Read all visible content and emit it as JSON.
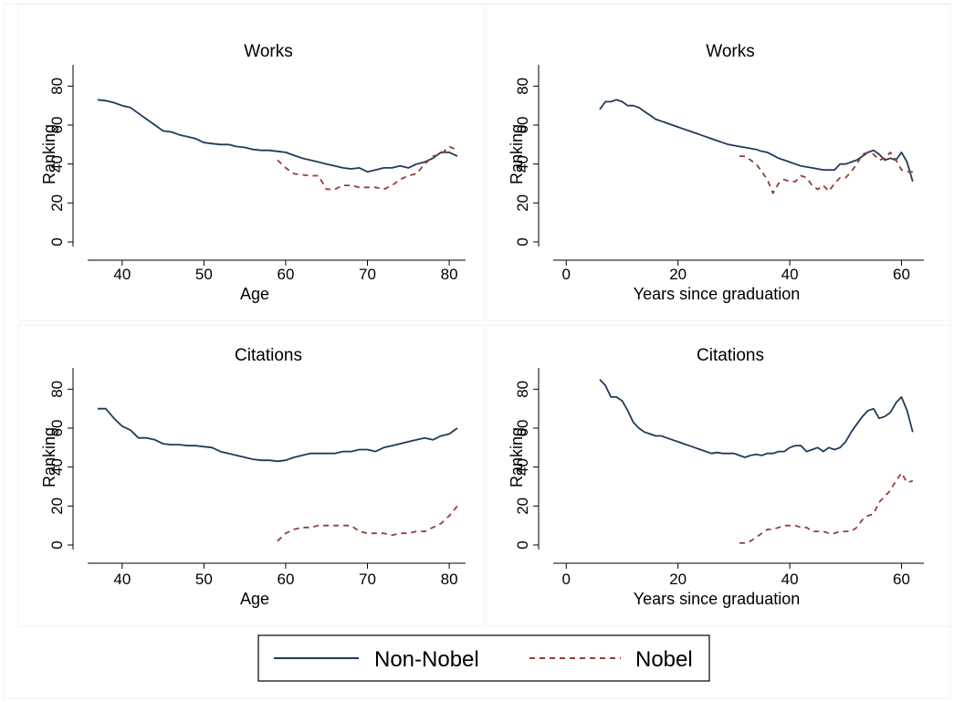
{
  "legend": {
    "entries": [
      {
        "label": "Non-Nobel",
        "color": "#1f3b5c",
        "style": "solid"
      },
      {
        "label": "Nobel",
        "color": "#9b3a3a",
        "style": "dashed"
      }
    ]
  },
  "chart_data": [
    {
      "type": "line",
      "title": "Works",
      "xlabel": "Age",
      "ylabel": "Ranking",
      "xlim": [
        36,
        82
      ],
      "ylim": [
        0,
        90
      ],
      "xticks": [
        40,
        50,
        60,
        70,
        80
      ],
      "yticks": [
        0,
        20,
        40,
        60,
        80
      ],
      "series": [
        {
          "name": "Non-Nobel",
          "x": [
            37,
            38,
            39,
            40,
            41,
            42,
            43,
            44,
            45,
            46,
            47,
            48,
            49,
            50,
            51,
            52,
            53,
            54,
            55,
            56,
            57,
            58,
            59,
            60,
            61,
            62,
            63,
            64,
            65,
            66,
            67,
            68,
            69,
            70,
            71,
            72,
            73,
            74,
            75,
            76,
            77,
            78,
            79,
            80,
            81
          ],
          "y": [
            73,
            72.5,
            71.5,
            70,
            69,
            66,
            63,
            60,
            57,
            56.5,
            55,
            54,
            53,
            51,
            50.5,
            50,
            50,
            49,
            48.5,
            47.5,
            47,
            47,
            46.5,
            46,
            44.5,
            43,
            42,
            41,
            40,
            39,
            38,
            37.5,
            38,
            36,
            37,
            38,
            38,
            39,
            38,
            40,
            41,
            43,
            46,
            46,
            44
          ]
        },
        {
          "name": "Nobel",
          "x": [
            59,
            60,
            61,
            62,
            63,
            64,
            65,
            66,
            67,
            68,
            69,
            70,
            71,
            72,
            73,
            74,
            75,
            76,
            77,
            78,
            79,
            80,
            81
          ],
          "y": [
            42,
            38,
            35,
            34.5,
            34,
            34,
            27,
            27,
            29,
            29,
            28,
            28,
            28,
            27,
            29,
            32,
            34,
            35,
            40,
            44,
            45,
            49,
            47
          ]
        }
      ]
    },
    {
      "type": "line",
      "title": "Works",
      "xlabel": "Years since graduation",
      "ylabel": "Ranking",
      "xlim": [
        -2,
        64
      ],
      "ylim": [
        0,
        90
      ],
      "xticks": [
        0,
        20,
        40,
        60
      ],
      "yticks": [
        0,
        20,
        40,
        60,
        80
      ],
      "series": [
        {
          "name": "Non-Nobel",
          "x": [
            6,
            7,
            8,
            9,
            10,
            11,
            12,
            13,
            14,
            15,
            16,
            17,
            18,
            19,
            20,
            21,
            22,
            23,
            24,
            25,
            26,
            27,
            28,
            29,
            30,
            31,
            32,
            33,
            34,
            35,
            36,
            37,
            38,
            39,
            40,
            41,
            42,
            43,
            44,
            45,
            46,
            47,
            48,
            49,
            50,
            51,
            52,
            53,
            54,
            55,
            56,
            57,
            58,
            59,
            60,
            61,
            62
          ],
          "y": [
            68,
            72,
            72,
            73,
            72,
            70,
            70,
            69,
            67,
            65,
            63,
            62,
            61,
            60,
            59,
            58,
            57,
            56,
            55,
            54,
            53,
            52,
            51,
            50,
            49.5,
            49,
            48.5,
            48,
            47.5,
            46.5,
            46,
            44.5,
            43,
            42,
            41,
            40,
            39,
            38.5,
            38,
            37.5,
            37,
            37,
            37,
            40,
            40,
            41,
            42,
            44,
            46,
            47,
            45,
            42,
            43,
            42,
            46,
            41,
            31
          ]
        },
        {
          "name": "Nobel",
          "x": [
            31,
            32,
            33,
            34,
            35,
            36,
            37,
            38,
            39,
            40,
            41,
            42,
            43,
            44,
            45,
            46,
            47,
            48,
            49,
            50,
            51,
            52,
            53,
            54,
            55,
            56,
            57,
            58,
            59,
            60,
            61,
            62
          ],
          "y": [
            44,
            44,
            42,
            40,
            36,
            32,
            25,
            30,
            32,
            31,
            31,
            34,
            33,
            29,
            27,
            29,
            26,
            30,
            33,
            33,
            36,
            40,
            45,
            46,
            45,
            42,
            43,
            46,
            42,
            37,
            36,
            36
          ]
        }
      ]
    },
    {
      "type": "line",
      "title": "Citations",
      "xlabel": "Age",
      "ylabel": "Ranking",
      "xlim": [
        36,
        82
      ],
      "ylim": [
        0,
        90
      ],
      "xticks": [
        40,
        50,
        60,
        70,
        80
      ],
      "yticks": [
        0,
        20,
        40,
        60,
        80
      ],
      "series": [
        {
          "name": "Non-Nobel",
          "x": [
            37,
            38,
            39,
            40,
            41,
            42,
            43,
            44,
            45,
            46,
            47,
            48,
            49,
            50,
            51,
            52,
            53,
            54,
            55,
            56,
            57,
            58,
            59,
            60,
            61,
            62,
            63,
            64,
            65,
            66,
            67,
            68,
            69,
            70,
            71,
            72,
            73,
            74,
            75,
            76,
            77,
            78,
            79,
            80,
            81
          ],
          "y": [
            70,
            70,
            65,
            61,
            59,
            55,
            55,
            54,
            52,
            51.5,
            51.5,
            51,
            51,
            50.5,
            50,
            48,
            47,
            46,
            45,
            44,
            43.5,
            43.5,
            43,
            43.5,
            45,
            46,
            47,
            47,
            47,
            47,
            48,
            48,
            49,
            49,
            48,
            50,
            51,
            52,
            53,
            54,
            55,
            54,
            56,
            57,
            60
          ]
        },
        {
          "name": "Nobel",
          "x": [
            59,
            60,
            61,
            62,
            63,
            64,
            65,
            66,
            67,
            68,
            69,
            70,
            71,
            72,
            73,
            74,
            75,
            76,
            77,
            78,
            79,
            80,
            81
          ],
          "y": [
            2,
            6,
            8,
            9,
            9,
            10,
            10,
            10,
            10,
            10,
            7,
            6,
            6,
            6,
            5,
            6,
            6,
            7,
            7,
            9,
            11,
            15,
            20
          ]
        }
      ]
    },
    {
      "type": "line",
      "title": "Citations",
      "xlabel": "Years since graduation",
      "ylabel": "Ranking",
      "xlim": [
        -2,
        64
      ],
      "ylim": [
        0,
        90
      ],
      "xticks": [
        0,
        20,
        40,
        60
      ],
      "yticks": [
        0,
        20,
        40,
        60,
        80
      ],
      "series": [
        {
          "name": "Non-Nobel",
          "x": [
            6,
            7,
            8,
            9,
            10,
            11,
            12,
            13,
            14,
            15,
            16,
            17,
            18,
            19,
            20,
            21,
            22,
            23,
            24,
            25,
            26,
            27,
            28,
            29,
            30,
            31,
            32,
            33,
            34,
            35,
            36,
            37,
            38,
            39,
            40,
            41,
            42,
            43,
            44,
            45,
            46,
            47,
            48,
            49,
            50,
            51,
            52,
            53,
            54,
            55,
            56,
            57,
            58,
            59,
            60,
            61,
            62
          ],
          "y": [
            85,
            82,
            76,
            76,
            74,
            69,
            63,
            60,
            58,
            57,
            56,
            56,
            55,
            54,
            53,
            52,
            51,
            50,
            49,
            48,
            47,
            47.5,
            47,
            47,
            47,
            46,
            45,
            46,
            46.5,
            46,
            47,
            47,
            48,
            48,
            50,
            51,
            51,
            48,
            49,
            50,
            48,
            50,
            49,
            50,
            53,
            58,
            62,
            66,
            69,
            70,
            65,
            66,
            68,
            73,
            76,
            69,
            58
          ]
        },
        {
          "name": "Nobel",
          "x": [
            31,
            32,
            33,
            34,
            35,
            36,
            37,
            38,
            39,
            40,
            41,
            42,
            43,
            44,
            45,
            46,
            47,
            48,
            49,
            50,
            51,
            52,
            53,
            54,
            55,
            56,
            57,
            58,
            59,
            60,
            61,
            62
          ],
          "y": [
            1,
            1,
            2,
            4,
            6,
            8,
            8,
            9,
            10,
            10,
            10,
            9,
            9,
            7,
            7,
            7,
            6,
            6,
            7,
            7,
            7,
            9,
            13,
            15,
            16,
            22,
            25,
            28,
            33,
            37,
            32,
            33
          ]
        }
      ]
    }
  ]
}
